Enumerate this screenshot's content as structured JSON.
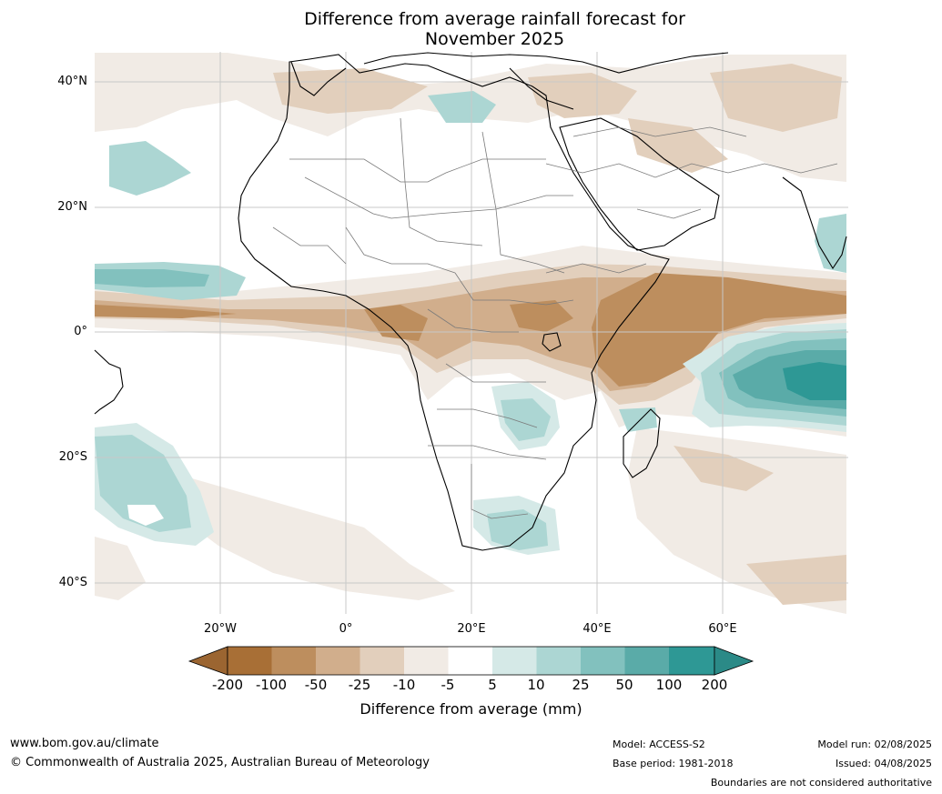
{
  "title_line1": "Difference from average rainfall forecast for",
  "title_line2": "November 2025",
  "lat_labels": [
    "40°N",
    "20°N",
    "0°",
    "20°S",
    "40°S"
  ],
  "lon_labels": [
    "20°W",
    "0°",
    "20°E",
    "40°E",
    "60°E"
  ],
  "legend": {
    "title": "Difference from average (mm)",
    "ticks": [
      "-200",
      "-100",
      "-50",
      "-25",
      "-10",
      "-5",
      "5",
      "10",
      "25",
      "50",
      "100",
      "200"
    ],
    "colors": [
      "#a86f36",
      "#bd8e5e",
      "#d1ae8c",
      "#e2cfbc",
      "#f1ebe5",
      "#ffffff",
      "#d5e9e7",
      "#acd6d3",
      "#82c1be",
      "#5aaba8",
      "#2e9895"
    ],
    "under_color": "#9b6531",
    "over_color": "#2b8a87"
  },
  "footer": {
    "website": "www.bom.gov.au/climate",
    "copyright": "© Commonwealth of Australia 2025, Australian Bureau of Meteorology",
    "model": "Model: ACCESS-S2",
    "base_period": "Base period: 1981-2018",
    "model_run": "Model run: 02/08/2025",
    "issued": "Issued: 04/08/2025",
    "boundaries_note": "Boundaries are not considered authoritative"
  }
}
